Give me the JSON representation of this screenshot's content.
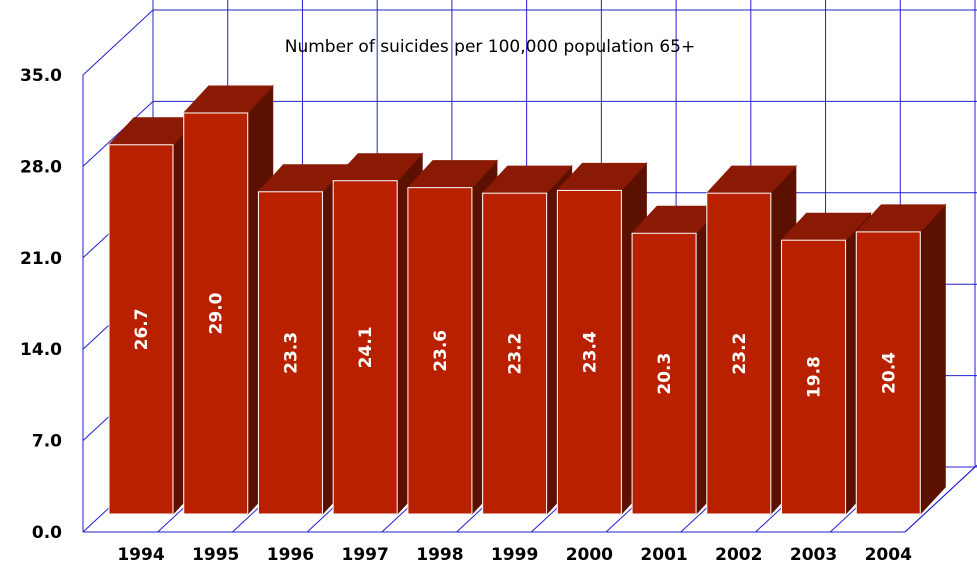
{
  "chart_data": {
    "type": "bar",
    "title": "Number of suicides per 100,000 population 65+",
    "categories": [
      "1994",
      "1995",
      "1996",
      "1997",
      "1998",
      "1999",
      "2000",
      "2001",
      "2002",
      "2003",
      "2004"
    ],
    "values": [
      26.7,
      29.0,
      23.3,
      24.1,
      23.6,
      23.2,
      23.4,
      20.3,
      23.2,
      19.8,
      20.4
    ],
    "value_labels": [
      "26.7",
      "29.0",
      "23.3",
      "24.1",
      "23.6",
      "23.2",
      "23.4",
      "20.3",
      "23.2",
      "19.8",
      "20.4"
    ],
    "y_ticks": [
      "0.0",
      "7.0",
      "14.0",
      "21.0",
      "28.0",
      "35.0"
    ],
    "ylim": [
      0,
      35
    ],
    "grid": true,
    "style": "3d-bar",
    "colors": {
      "bar_front": "#b82000",
      "bar_top": "#8a1a04",
      "bar_side": "#5c1000",
      "grid": "#2020d0",
      "value_label": "#ffffff"
    }
  }
}
